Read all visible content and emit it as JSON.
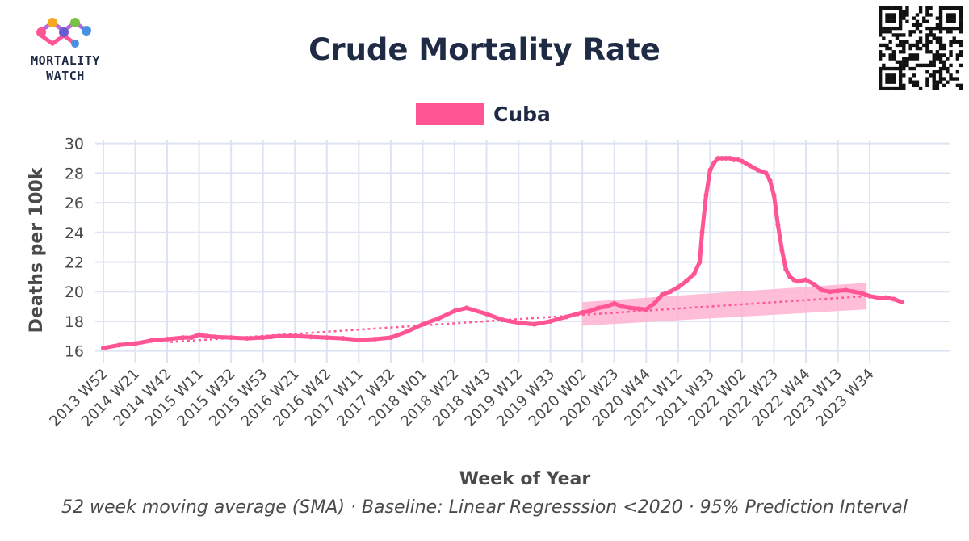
{
  "logo": {
    "line1": "MORTALITY",
    "line2": "WATCH",
    "icon": "mortality-watch-logo-icon"
  },
  "qr_icon": "qr-code-icon",
  "colors": {
    "series": "#ff5594",
    "band": "#ffb3d1",
    "title": "#1f2a44",
    "grid": "#dde3f3",
    "axis": "#4a4a4a"
  },
  "chart_data": {
    "type": "line",
    "title": "Crude Mortality Rate",
    "xlabel": "Week of Year",
    "ylabel": "Deaths per 100k",
    "footnote": "52 week moving average (SMA) · Baseline: Linear Regresssion <2020 · 95% Prediction Interval",
    "legend": [
      {
        "name": "Cuba",
        "color": "#ff5594"
      }
    ],
    "ylim": [
      15.6,
      30.2
    ],
    "yticks": [
      16,
      18,
      20,
      22,
      24,
      26,
      28,
      30
    ],
    "xlim": [
      2013.96,
      2024.6
    ],
    "xticks": [
      {
        "label": "2013 W52",
        "x": 2014.0
      },
      {
        "label": "2014 W21",
        "x": 2014.4
      },
      {
        "label": "2014 W42",
        "x": 2014.8
      },
      {
        "label": "2015 W11",
        "x": 2015.2
      },
      {
        "label": "2015 W32",
        "x": 2015.6
      },
      {
        "label": "2015 W53",
        "x": 2016.0
      },
      {
        "label": "2016 W21",
        "x": 2016.4
      },
      {
        "label": "2016 W42",
        "x": 2016.8
      },
      {
        "label": "2017 W11",
        "x": 2017.2
      },
      {
        "label": "2017 W32",
        "x": 2017.6
      },
      {
        "label": "2018 W01",
        "x": 2018.0
      },
      {
        "label": "2018 W22",
        "x": 2018.4
      },
      {
        "label": "2018 W43",
        "x": 2018.8
      },
      {
        "label": "2019 W12",
        "x": 2019.2
      },
      {
        "label": "2019 W33",
        "x": 2019.6
      },
      {
        "label": "2020 W02",
        "x": 2020.0
      },
      {
        "label": "2020 W23",
        "x": 2020.4
      },
      {
        "label": "2020 W44",
        "x": 2020.8
      },
      {
        "label": "2021 W12",
        "x": 2021.2
      },
      {
        "label": "2021 W33",
        "x": 2021.6
      },
      {
        "label": "2022 W02",
        "x": 2022.0
      },
      {
        "label": "2022 W23",
        "x": 2022.4
      },
      {
        "label": "2022 W44",
        "x": 2022.8
      },
      {
        "label": "2023 W13",
        "x": 2023.2
      },
      {
        "label": "2023 W34",
        "x": 2023.6
      }
    ],
    "series": [
      {
        "name": "Cuba",
        "x": [
          2014.0,
          2014.2,
          2014.4,
          2014.6,
          2014.8,
          2015.0,
          2015.1,
          2015.2,
          2015.3,
          2015.4,
          2015.6,
          2015.8,
          2016.0,
          2016.1,
          2016.2,
          2016.4,
          2016.6,
          2016.8,
          2017.0,
          2017.2,
          2017.4,
          2017.6,
          2017.8,
          2018.0,
          2018.2,
          2018.4,
          2018.55,
          2018.8,
          2019.0,
          2019.2,
          2019.4,
          2019.6,
          2019.8,
          2020.0,
          2020.1,
          2020.2,
          2020.3,
          2020.4,
          2020.5,
          2020.6,
          2020.7,
          2020.8,
          2020.9,
          2021.0,
          2021.1,
          2021.2,
          2021.3,
          2021.4,
          2021.47,
          2021.5,
          2021.55,
          2021.6,
          2021.65,
          2021.7,
          2021.75,
          2021.8,
          2021.85,
          2021.9,
          2021.95,
          2022.0,
          2022.1,
          2022.2,
          2022.3,
          2022.35,
          2022.4,
          2022.45,
          2022.5,
          2022.55,
          2022.6,
          2022.65,
          2022.7,
          2022.75,
          2022.8,
          2022.9,
          2023.0,
          2023.1,
          2023.2,
          2023.3,
          2023.4,
          2023.5,
          2023.6,
          2023.7,
          2023.8,
          2023.9,
          2024.0
        ],
        "values": [
          16.2,
          16.4,
          16.5,
          16.7,
          16.8,
          16.9,
          16.9,
          17.1,
          17.0,
          16.95,
          16.9,
          16.85,
          16.9,
          16.95,
          17.0,
          17.0,
          16.95,
          16.9,
          16.85,
          16.75,
          16.8,
          16.9,
          17.3,
          17.8,
          18.2,
          18.7,
          18.9,
          18.5,
          18.1,
          17.9,
          17.8,
          18.0,
          18.3,
          18.6,
          18.7,
          18.9,
          19.0,
          19.2,
          19.0,
          18.9,
          18.85,
          18.8,
          19.2,
          19.8,
          20.0,
          20.3,
          20.7,
          21.2,
          22.0,
          24.0,
          26.5,
          28.2,
          28.7,
          29.0,
          29.0,
          29.0,
          29.0,
          28.9,
          28.9,
          28.8,
          28.5,
          28.2,
          28.0,
          27.5,
          26.5,
          24.5,
          22.8,
          21.5,
          21.0,
          20.8,
          20.7,
          20.75,
          20.8,
          20.5,
          20.1,
          20.0,
          20.05,
          20.1,
          20.0,
          19.9,
          19.7,
          19.6,
          19.6,
          19.5,
          19.3
        ]
      }
    ],
    "baseline": {
      "x0": 2014.84,
      "y0": 16.6,
      "x1": 2023.56,
      "y1": 19.7
    },
    "prediction_interval": {
      "x": [
        2020.0,
        2023.56
      ],
      "lower": [
        17.7,
        18.8
      ],
      "upper": [
        19.3,
        20.6
      ]
    }
  }
}
